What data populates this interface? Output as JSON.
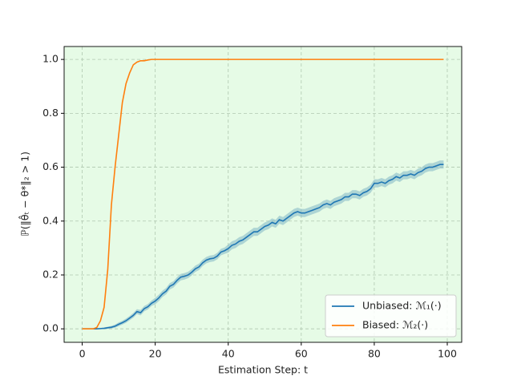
{
  "chart_data": {
    "type": "line",
    "x_label": "Estimation Step: t",
    "y_label": "ℙ(‖θ̂ₜ − θ*‖₂ > 1)",
    "xlim": [
      -4.95,
      103.95
    ],
    "ylim": [
      -0.05,
      1.048
    ],
    "xticks": [
      0,
      20,
      40,
      60,
      80,
      100
    ],
    "yticks": [
      {
        "value": 0,
        "label": "0.0"
      },
      {
        "value": 0.2,
        "label": "0.2"
      },
      {
        "value": 0.4,
        "label": "0.4"
      },
      {
        "value": 0.6,
        "label": "0.6"
      },
      {
        "value": 0.8,
        "label": "0.8"
      },
      {
        "value": 1,
        "label": "1.0"
      }
    ],
    "grid": true,
    "legend": "lower right",
    "background": "#e6fbe6",
    "x": [
      0,
      1,
      2,
      3,
      4,
      5,
      6,
      7,
      8,
      9,
      10,
      11,
      12,
      13,
      14,
      15,
      16,
      17,
      18,
      19,
      20,
      21,
      22,
      23,
      24,
      25,
      26,
      27,
      28,
      29,
      30,
      31,
      32,
      33,
      34,
      35,
      36,
      37,
      38,
      39,
      40,
      41,
      42,
      43,
      44,
      45,
      46,
      47,
      48,
      49,
      50,
      51,
      52,
      53,
      54,
      55,
      56,
      57,
      58,
      59,
      60,
      61,
      62,
      63,
      64,
      65,
      66,
      67,
      68,
      69,
      70,
      71,
      72,
      73,
      74,
      75,
      76,
      77,
      78,
      79,
      80,
      81,
      82,
      83,
      84,
      85,
      86,
      87,
      88,
      89,
      90,
      91,
      92,
      93,
      94,
      95,
      96,
      97,
      98,
      99
    ],
    "series": [
      {
        "name": "Unbiased: ℳ₁(·)",
        "color": "#1f77b4",
        "band_color": "#7fb6c4",
        "values": [
          0,
          0,
          0,
          0,
          0,
          0.001,
          0.002,
          0.004,
          0.006,
          0.01,
          0.017,
          0.023,
          0.03,
          0.04,
          0.05,
          0.064,
          0.06,
          0.075,
          0.082,
          0.095,
          0.103,
          0.115,
          0.13,
          0.14,
          0.158,
          0.165,
          0.18,
          0.192,
          0.195,
          0.2,
          0.21,
          0.223,
          0.23,
          0.245,
          0.255,
          0.26,
          0.262,
          0.27,
          0.285,
          0.29,
          0.298,
          0.31,
          0.315,
          0.325,
          0.33,
          0.34,
          0.35,
          0.36,
          0.36,
          0.37,
          0.38,
          0.385,
          0.395,
          0.39,
          0.405,
          0.4,
          0.41,
          0.42,
          0.43,
          0.435,
          0.43,
          0.43,
          0.435,
          0.44,
          0.445,
          0.45,
          0.46,
          0.465,
          0.46,
          0.47,
          0.475,
          0.48,
          0.49,
          0.49,
          0.5,
          0.5,
          0.495,
          0.505,
          0.51,
          0.52,
          0.54,
          0.54,
          0.545,
          0.54,
          0.55,
          0.555,
          0.565,
          0.56,
          0.57,
          0.57,
          0.575,
          0.57,
          0.58,
          0.585,
          0.595,
          0.6,
          0.6,
          0.605,
          0.61,
          0.61
        ],
        "errors": [
          0,
          0,
          0,
          0,
          0,
          0.002,
          0.003,
          0.004,
          0.005,
          0.006,
          0.007,
          0.007,
          0.008,
          0.008,
          0.009,
          0.009,
          0.01,
          0.01,
          0.01,
          0.01,
          0.012,
          0.012,
          0.012,
          0.012,
          0.012,
          0.012,
          0.012,
          0.012,
          0.012,
          0.012,
          0.012,
          0.012,
          0.012,
          0.012,
          0.012,
          0.012,
          0.012,
          0.012,
          0.012,
          0.012,
          0.015,
          0.015,
          0.015,
          0.015,
          0.015,
          0.015,
          0.015,
          0.015,
          0.015,
          0.015,
          0.015,
          0.015,
          0.015,
          0.015,
          0.015,
          0.015,
          0.015,
          0.015,
          0.015,
          0.015,
          0.015,
          0.015,
          0.015,
          0.015,
          0.015,
          0.015,
          0.015,
          0.015,
          0.015,
          0.015,
          0.015,
          0.015,
          0.015,
          0.015,
          0.015,
          0.015,
          0.015,
          0.015,
          0.015,
          0.015,
          0.015,
          0.015,
          0.015,
          0.015,
          0.015,
          0.015,
          0.015,
          0.015,
          0.015,
          0.015,
          0.015,
          0.015,
          0.015,
          0.015,
          0.015,
          0.015,
          0.015,
          0.015,
          0.015,
          0.015
        ]
      },
      {
        "name": "Biased: ℳ₂(·)",
        "color": "#ff7f0e",
        "values": [
          0,
          0,
          0,
          0,
          0.005,
          0.03,
          0.08,
          0.22,
          0.46,
          0.6,
          0.72,
          0.84,
          0.91,
          0.95,
          0.98,
          0.99,
          0.995,
          0.995,
          0.998,
          1,
          1,
          1,
          1,
          1,
          1,
          1,
          1,
          1,
          1,
          1,
          1,
          1,
          1,
          1,
          1,
          1,
          1,
          1,
          1,
          1,
          1,
          1,
          1,
          1,
          1,
          1,
          1,
          1,
          1,
          1,
          1,
          1,
          1,
          1,
          1,
          1,
          1,
          1,
          1,
          1,
          1,
          1,
          1,
          1,
          1,
          1,
          1,
          1,
          1,
          1,
          1,
          1,
          1,
          1,
          1,
          1,
          1,
          1,
          1,
          1,
          1,
          1,
          1,
          1,
          1,
          1,
          1,
          1,
          1,
          1,
          1,
          1,
          1,
          1,
          1,
          1,
          1,
          1,
          1,
          1
        ]
      }
    ]
  }
}
